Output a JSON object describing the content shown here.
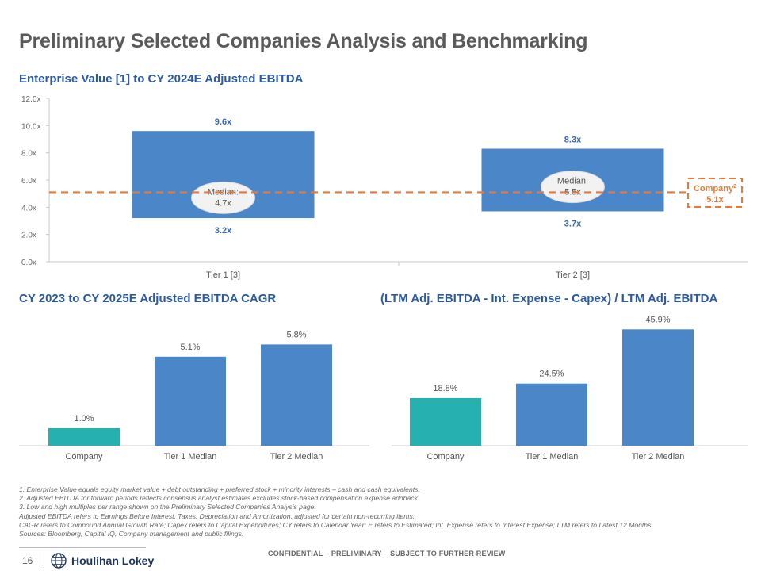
{
  "page": {
    "title": "Preliminary Selected Companies Analysis and Benchmarking",
    "page_number": "16",
    "confidential": "CONFIDENTIAL – PRELIMINARY – SUBJECT TO FURTHER REVIEW",
    "logo_text": "Houlihan Lokey"
  },
  "colors": {
    "blue": "#4A86C8",
    "teal": "#26B0B0",
    "orange": "#E8793A",
    "title_blue": "#2A5AA6",
    "label_blue": "#3569B3"
  },
  "chart_data": [
    {
      "id": "ev-ebitda",
      "type": "range",
      "title": "Enterprise Value [1] to CY 2024E Adjusted EBITDA",
      "ylim": [
        0,
        12
      ],
      "yticks": [
        0,
        2,
        4,
        6,
        8,
        10,
        12
      ],
      "ytick_labels": [
        "0.0x",
        "2.0x",
        "4.0x",
        "6.0x",
        "8.0x",
        "10.0x",
        "12.0x"
      ],
      "categories": [
        "Tier 1 [3]",
        "Tier 2 [3]"
      ],
      "low": [
        3.2,
        3.7
      ],
      "high": [
        9.6,
        8.3
      ],
      "median": [
        4.7,
        5.5
      ],
      "low_labels": [
        "3.2x",
        "3.7x"
      ],
      "high_labels": [
        "9.6x",
        "8.3x"
      ],
      "median_title": "Median:",
      "median_labels": [
        "4.7x",
        "5.5x"
      ],
      "reference": {
        "value": 5.1,
        "label": "Company",
        "superscript": "2",
        "value_label": "5.1x"
      }
    },
    {
      "id": "cagr",
      "type": "bar",
      "title": "CY 2023 to CY 2025E Adjusted EBITDA CAGR",
      "categories": [
        "Company",
        "Tier 1 Median",
        "Tier 2 Median"
      ],
      "values": [
        1.0,
        5.1,
        5.8
      ],
      "value_labels": [
        "1.0%",
        "5.1%",
        "5.8%"
      ],
      "bar_colors": [
        "#26B0B0",
        "#4A86C8",
        "#4A86C8"
      ],
      "ylim": [
        0,
        6.0
      ]
    },
    {
      "id": "fcf",
      "type": "bar",
      "title": "(LTM Adj. EBITDA - Int. Expense - Capex) / LTM Adj. EBITDA",
      "categories": [
        "Company",
        "Tier 1 Median",
        "Tier 2 Median"
      ],
      "values": [
        18.8,
        24.5,
        45.9
      ],
      "value_labels": [
        "18.8%",
        "24.5%",
        "45.9%"
      ],
      "bar_colors": [
        "#26B0B0",
        "#4A86C8",
        "#4A86C8"
      ],
      "ylim": [
        0,
        46.0
      ]
    }
  ],
  "footnotes": [
    "1. Enterprise Value equals equity market value + debt outstanding + preferred stock + minority interests – cash and cash equivalents.",
    "2. Adjusted EBITDA for forward periods reflects consensus analyst estimates excludes stock-based compensation expense addback.",
    "3. Low and high multiples per range shown on the Preliminary Selected Companies Analysis page.",
    "Adjusted EBITDA refers to Earnings Before Interest, Taxes, Depreciation and Amortization, adjusted for certain non-recurring items.",
    "CAGR refers to Compound Annual Growth Rate; Capex refers to Capital Expenditures; CY refers to Calendar Year; E refers to Estimated; Int. Expense refers to Interest Expense; LTM refers to Latest 12 Months.",
    "Sources: Bloomberg, Capital IQ, Company management and public filings."
  ]
}
